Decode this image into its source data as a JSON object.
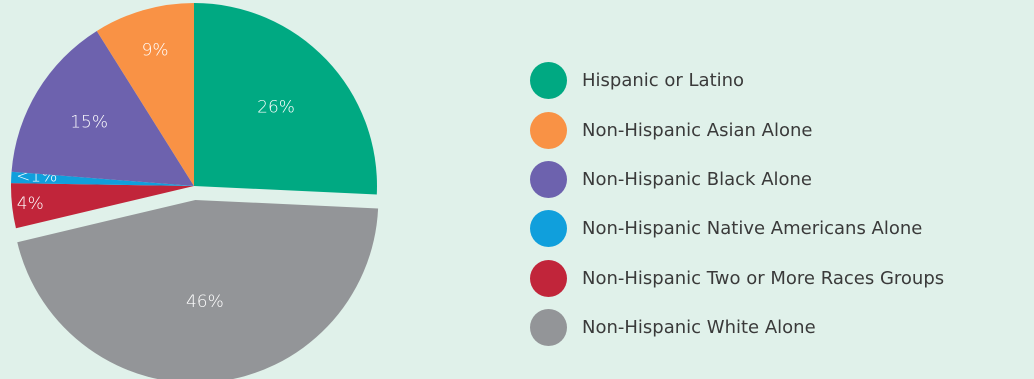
{
  "chart_data": {
    "type": "pie",
    "title": "",
    "legend_position": "right",
    "slices": [
      {
        "label": "Hispanic or Latino",
        "value": 26,
        "display": "26%",
        "color": "#00a982",
        "exploded": false
      },
      {
        "label": "Non-Hispanic White Alone",
        "value": 46,
        "display": "46%",
        "color": "#939598",
        "exploded": true
      },
      {
        "label": "Non-Hispanic Two or More Races Groups",
        "value": 4,
        "display": "4%",
        "color": "#c1253a",
        "exploded": false
      },
      {
        "label": "Non-Hispanic Native Americans Alone",
        "value": 1,
        "display": "<1%",
        "color": "#109fdc",
        "exploded": false
      },
      {
        "label": "Non-Hispanic Black Alone",
        "value": 15,
        "display": "15%",
        "color": "#6d62ae",
        "exploded": false
      },
      {
        "label": "Non-Hispanic Asian Alone",
        "value": 9,
        "display": "9%",
        "color": "#f99245",
        "exploded": false
      }
    ],
    "legend": [
      {
        "label": "Hispanic or Latino",
        "color": "#00a982"
      },
      {
        "label": "Non-Hispanic Asian Alone",
        "color": "#f99245"
      },
      {
        "label": "Non-Hispanic Black Alone",
        "color": "#6d62ae"
      },
      {
        "label": "Non-Hispanic Native Americans Alone",
        "color": "#109fdc"
      },
      {
        "label": "Non-Hispanic Two or More Races Groups",
        "color": "#c1253a"
      },
      {
        "label": "Non-Hispanic White Alone",
        "color": "#939598"
      }
    ]
  }
}
